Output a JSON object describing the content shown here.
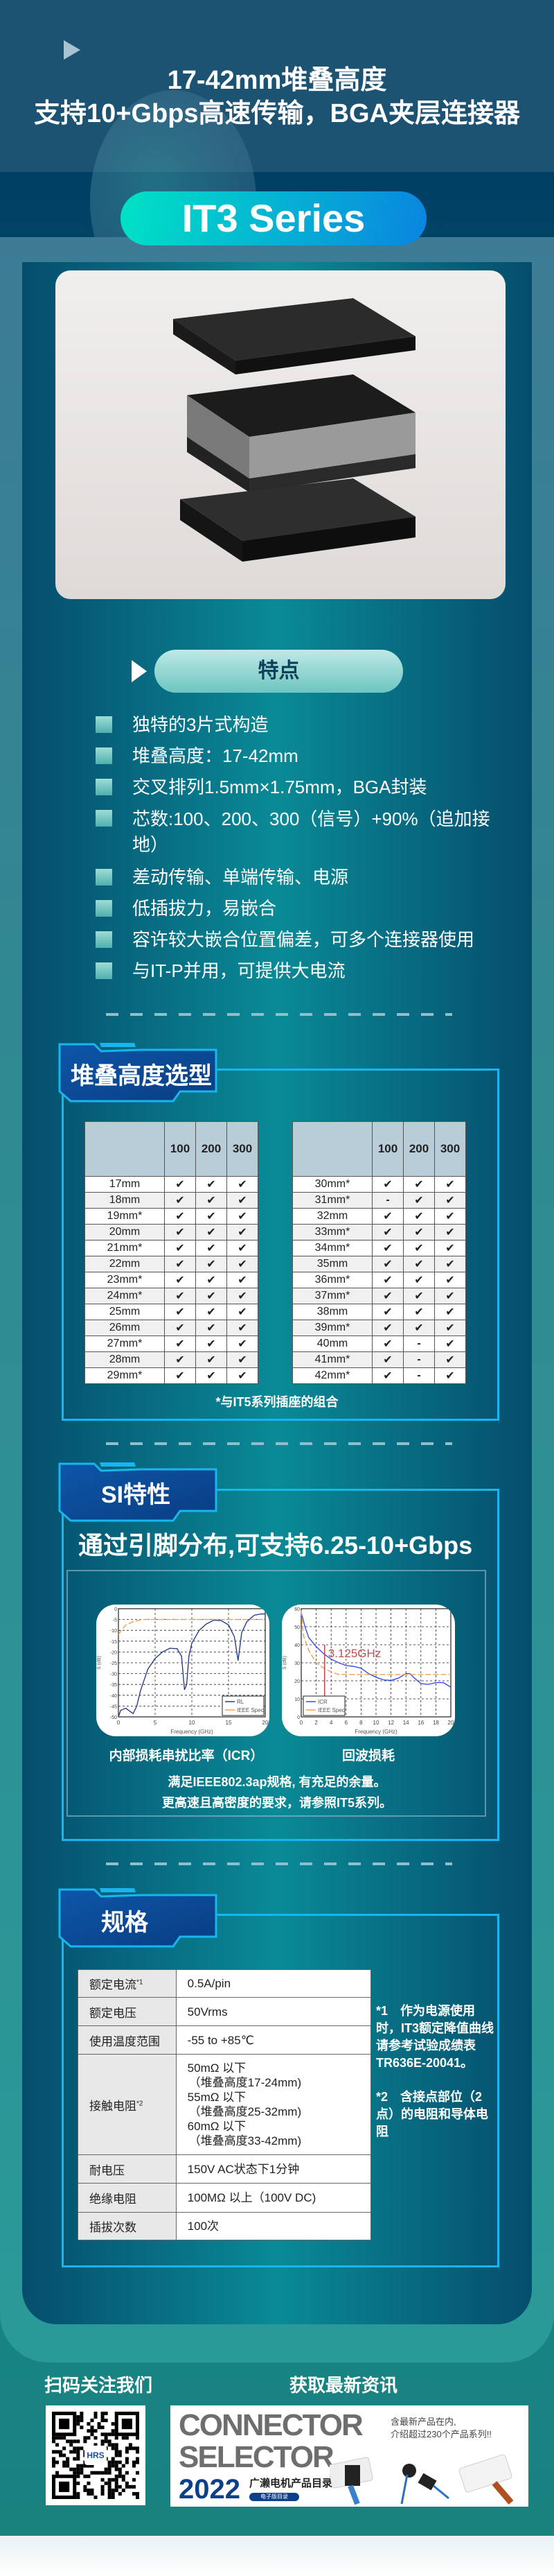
{
  "header": {
    "title_line1": "17-42mm堆叠高度",
    "title_line2": "支持10+Gbps高速传输，BGA夹层连接器",
    "series": "IT3 Series"
  },
  "colors": {
    "accent_cyan": "#16b6f0",
    "panel_dark": "#054d6c",
    "pill_gradient_start": "#00e2c6",
    "pill_gradient_end": "#0a85e0",
    "ieee_spec": "#f0a050",
    "curve_left": "#2a3f8a",
    "curve_right": "#3a4ff0",
    "marker": "#c0504d"
  },
  "features": {
    "title": "特点",
    "items": [
      "独特的3片式构造",
      "堆叠高度：17-42mm",
      "交叉排列1.5mm×1.75mm，BGA封装",
      "芯数:100、200、300（信号）+90%（追加接地）",
      "差动传输、单端传输、电源",
      "低插拔力，易嵌合",
      "容许较大嵌合位置偏差，可多个连接器使用",
      "与IT-P并用，可提供大电流"
    ]
  },
  "stack": {
    "title": "堆叠高度选型",
    "columns": [
      "",
      "100",
      "200",
      "300"
    ],
    "left_rows": [
      [
        "17mm",
        "✔",
        "✔",
        "✔"
      ],
      [
        "18mm",
        "✔",
        "✔",
        "✔"
      ],
      [
        "19mm*",
        "✔",
        "✔",
        "✔"
      ],
      [
        "20mm",
        "✔",
        "✔",
        "✔"
      ],
      [
        "21mm*",
        "✔",
        "✔",
        "✔"
      ],
      [
        "22mm",
        "✔",
        "✔",
        "✔"
      ],
      [
        "23mm*",
        "✔",
        "✔",
        "✔"
      ],
      [
        "24mm*",
        "✔",
        "✔",
        "✔"
      ],
      [
        "25mm",
        "✔",
        "✔",
        "✔"
      ],
      [
        "26mm",
        "✔",
        "✔",
        "✔"
      ],
      [
        "27mm*",
        "✔",
        "✔",
        "✔"
      ],
      [
        "28mm",
        "✔",
        "✔",
        "✔"
      ],
      [
        "29mm*",
        "✔",
        "✔",
        "✔"
      ]
    ],
    "right_rows": [
      [
        "30mm*",
        "✔",
        "✔",
        "✔"
      ],
      [
        "31mm*",
        "-",
        "✔",
        "✔"
      ],
      [
        "32mm",
        "✔",
        "✔",
        "✔"
      ],
      [
        "33mm*",
        "✔",
        "✔",
        "✔"
      ],
      [
        "34mm*",
        "✔",
        "✔",
        "✔"
      ],
      [
        "35mm",
        "✔",
        "✔",
        "✔"
      ],
      [
        "36mm*",
        "✔",
        "✔",
        "✔"
      ],
      [
        "37mm*",
        "✔",
        "✔",
        "✔"
      ],
      [
        "38mm",
        "✔",
        "✔",
        "✔"
      ],
      [
        "39mm*",
        "✔",
        "✔",
        "✔"
      ],
      [
        "40mm",
        "✔",
        "-",
        "✔"
      ],
      [
        "41mm*",
        "✔",
        "-",
        "✔"
      ],
      [
        "42mm*",
        "✔",
        "-",
        "✔"
      ]
    ],
    "footnote": "*与IT5系列插座的组合"
  },
  "si": {
    "title": "SI特性",
    "subtitle": "通过引脚分布,可支持6.25-10+Gbps",
    "chart_left_label": "内部损耗串扰比率（ICR）",
    "chart_right_label": "回波损耗",
    "note1": "满足IEEE802.3ap规格, 有充足的余量。",
    "note2": "更高速且高密度的要求，请参照IT5系列。"
  },
  "chart_data": [
    {
      "type": "line",
      "xlabel": "Frequency (GHz)",
      "ylabel": "S (dB)",
      "xlim": [
        0,
        20
      ],
      "ylim": [
        -50,
        0
      ],
      "xticks": [
        0,
        5,
        10,
        15,
        20
      ],
      "yticks": [
        0,
        -5,
        -10,
        -15,
        -20,
        -25,
        -30,
        -35,
        -40,
        -45,
        -50
      ],
      "grid": true,
      "legend": "bottom-right",
      "series": [
        {
          "name": "RL",
          "x": [
            0,
            0.3,
            1,
            2,
            2.5,
            3,
            4,
            5,
            6,
            7,
            8,
            8.6,
            9,
            9.3,
            9.6,
            10,
            11,
            12,
            13,
            14,
            15,
            15.8,
            16.3,
            16.8,
            17.5,
            18.5,
            19.5,
            20
          ],
          "y": [
            -50,
            -47,
            -46,
            -48.5,
            -45,
            -38,
            -28,
            -23,
            -20,
            -18.3,
            -18.5,
            -22,
            -37.5,
            -35,
            -22,
            -16,
            -10,
            -7,
            -5.3,
            -5.5,
            -7.5,
            -13,
            -24,
            -11,
            -6,
            -3,
            -2.4,
            -2.5
          ]
        },
        {
          "name": "IEEE Spec",
          "x": [
            0,
            0.5,
            1,
            2,
            3,
            3.5,
            20
          ],
          "y": [
            -12,
            -9.5,
            -7.5,
            -6,
            -5.2,
            -5,
            -5
          ]
        }
      ]
    },
    {
      "type": "line",
      "xlabel": "Frequency (GHz)",
      "ylabel": "S (dB)",
      "xlim": [
        0,
        20
      ],
      "ylim": [
        0,
        60
      ],
      "xticks": [
        0,
        2,
        4,
        6,
        8,
        10,
        12,
        14,
        16,
        18,
        20
      ],
      "yticks": [
        0,
        10,
        20,
        30,
        40,
        50,
        60
      ],
      "grid": true,
      "legend": "bottom-left",
      "annotation": "3.125GHz",
      "marker_x": 3.125,
      "series": [
        {
          "name": "ICR",
          "x": [
            0,
            0.5,
            1,
            2,
            3,
            4,
            5,
            6,
            7,
            8,
            9,
            10,
            11,
            12,
            13,
            14,
            14.5,
            15,
            16,
            17,
            18,
            19,
            20
          ],
          "y": [
            58,
            50,
            44,
            39,
            35,
            32,
            30,
            28.5,
            28,
            27,
            24,
            22,
            20.5,
            20.2,
            21.5,
            24,
            24,
            22,
            18.5,
            18,
            19,
            19,
            16.5
          ]
        },
        {
          "name": "IEEE Spec",
          "x": [
            0,
            0.3,
            1,
            2,
            3,
            4,
            5,
            20
          ],
          "y": [
            59,
            45,
            37,
            30,
            27,
            25,
            23.5,
            23.5
          ]
        }
      ]
    }
  ],
  "spec": {
    "title": "规格",
    "rows": [
      {
        "k": "额定电流",
        "sup": "*1",
        "v": [
          "0.5A/pin"
        ]
      },
      {
        "k": "额定电压",
        "sup": "",
        "v": [
          "50Vrms"
        ]
      },
      {
        "k": "使用温度范围",
        "sup": "",
        "v": [
          "-55 to +85℃"
        ]
      },
      {
        "k": "接触电阻",
        "sup": "*2",
        "v": [
          "50mΩ 以下",
          "（堆叠高度17-24mm)",
          "55mΩ 以下",
          "（堆叠高度25-32mm)",
          "60mΩ 以下",
          "（堆叠高度33-42mm)"
        ]
      },
      {
        "k": "耐电压",
        "sup": "",
        "v": [
          "150V AC状态下1分钟"
        ]
      },
      {
        "k": "绝缘电阻",
        "sup": "",
        "v": [
          "100MΩ 以上（100V DC)"
        ]
      },
      {
        "k": "插拔次数",
        "sup": "",
        "v": [
          "100次"
        ]
      }
    ],
    "note1": "*1　作为电源使用时，IT3额定降值曲线请参考试验成绩表TR636E-20041。",
    "note2": "*2　含接点部位（2点）的电阻和导体电阻"
  },
  "footer": {
    "qr_title": "扫码关注我们",
    "news_title": "获取最新资讯",
    "qr_logo": "HRS",
    "banner_line1": "CONNECTOR",
    "banner_line2": "SELECTOR",
    "banner_year": "2022",
    "banner_cn": "广濑电机产品目录",
    "banner_badge": "电子版目录",
    "banner_desc1": "含最新产品在内,",
    "banner_desc2": "介绍超过230个产品系列!!"
  }
}
